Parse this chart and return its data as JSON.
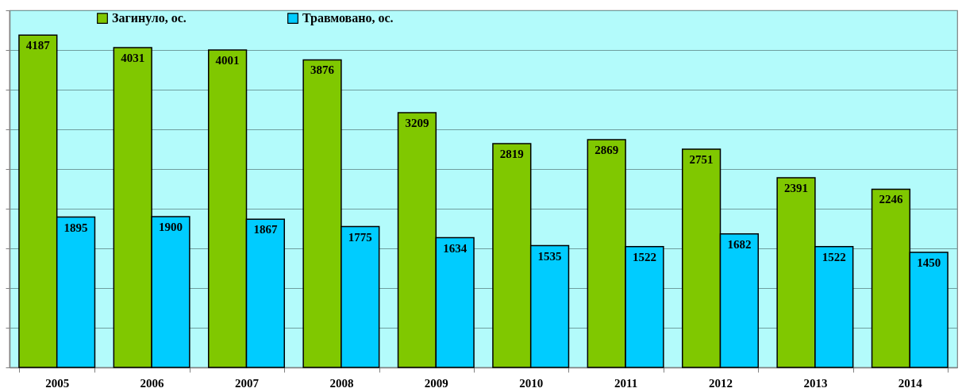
{
  "chart_data": {
    "type": "bar",
    "categories": [
      "2005",
      "2006",
      "2007",
      "2008",
      "2009",
      "2010",
      "2011",
      "2012",
      "2013",
      "2014"
    ],
    "series": [
      {
        "name": "Загинуло, ос.",
        "color": "#80c800",
        "values": [
          4187,
          4031,
          4001,
          3876,
          3209,
          2819,
          2869,
          2751,
          2391,
          2246
        ]
      },
      {
        "name": "Травмовано, ос.",
        "color": "#00ccff",
        "values": [
          1895,
          1900,
          1867,
          1775,
          1634,
          1535,
          1522,
          1682,
          1522,
          1450
        ]
      }
    ],
    "ylim": [
      0,
      4500
    ],
    "yticks": [
      {
        "value": 0,
        "label": null
      },
      {
        "value": 500,
        "label": null
      },
      {
        "value": 1000,
        "label": null
      },
      {
        "value": 1500,
        "label": null
      },
      {
        "value": 2000,
        "label": null
      },
      {
        "value": 2500,
        "label": null
      },
      {
        "value": 3000,
        "label": null
      },
      {
        "value": 3500,
        "label": null
      },
      {
        "value": 4000,
        "label": null
      },
      {
        "value": 4500,
        "label": null
      }
    ],
    "grid": "y",
    "legend": "top left",
    "tick_labels": "x",
    "data_labels": true
  }
}
